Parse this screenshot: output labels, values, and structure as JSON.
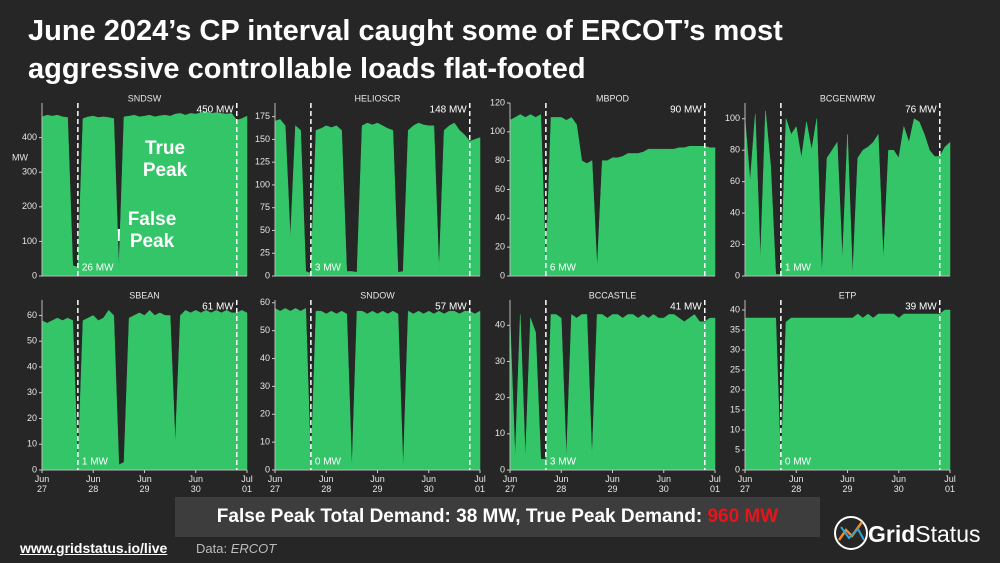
{
  "title": "June 2024’s CP interval caught some of ERCOT’s most aggressive controllable loads flat-footed",
  "annotations": {
    "true_peak": "True Peak",
    "false_peak": "False Peak"
  },
  "banner": {
    "text": "False Peak Total Demand: 38 MW, True Peak Demand:",
    "highlight": "960 MW"
  },
  "footer": {
    "url": "www.gridstatus.io/live",
    "source_label": "Data:",
    "source": "ERCOT"
  },
  "logo": {
    "name_1": "Grid",
    "name_2": "Status"
  },
  "chart_data": [
    {
      "type": "area",
      "title": "SNDSW",
      "ylabel": "MW",
      "color": "#34c569",
      "x": [
        0,
        0.1,
        0.2,
        0.3,
        0.4,
        0.5,
        0.6,
        0.7,
        0.8,
        0.9,
        1,
        1.1,
        1.2,
        1.3,
        1.4,
        1.5,
        1.6,
        1.7,
        1.8,
        1.9,
        2,
        2.1,
        2.2,
        2.3,
        2.4,
        2.5,
        2.6,
        2.7,
        2.8,
        2.9,
        3,
        3.1,
        3.2,
        3.3,
        3.4,
        3.5,
        3.6,
        3.7,
        3.8,
        3.9,
        4
      ],
      "values": [
        460,
        465,
        462,
        465,
        460,
        458,
        30,
        26,
        455,
        460,
        462,
        458,
        460,
        458,
        455,
        20,
        460,
        462,
        465,
        460,
        462,
        465,
        460,
        463,
        465,
        462,
        468,
        470,
        465,
        470,
        468,
        472,
        475,
        470,
        472,
        470,
        468,
        470,
        450,
        455,
        462
      ],
      "xlim": [
        0,
        4
      ],
      "ylim": [
        0,
        500
      ],
      "yticks": [
        0,
        100,
        200,
        300,
        400
      ],
      "false_peak": {
        "x": 0.7,
        "value": 26,
        "label": "26 MW"
      },
      "true_peak": {
        "x": 3.8,
        "value": 450,
        "label": "450 MW"
      }
    },
    {
      "type": "area",
      "title": "HELIOSCR",
      "color": "#34c569",
      "x": [
        0,
        0.1,
        0.2,
        0.3,
        0.4,
        0.5,
        0.6,
        0.7,
        0.8,
        0.9,
        1,
        1.1,
        1.2,
        1.3,
        1.4,
        1.5,
        1.6,
        1.7,
        1.8,
        1.9,
        2,
        2.1,
        2.2,
        2.3,
        2.4,
        2.5,
        2.6,
        2.7,
        2.8,
        2.9,
        3,
        3.1,
        3.2,
        3.3,
        3.4,
        3.5,
        3.6,
        3.7,
        3.8,
        3.9,
        4
      ],
      "values": [
        170,
        172,
        165,
        40,
        165,
        160,
        5,
        3,
        160,
        162,
        165,
        163,
        165,
        160,
        5,
        5,
        4,
        165,
        168,
        166,
        168,
        165,
        162,
        160,
        4,
        5,
        160,
        165,
        168,
        166,
        165,
        165,
        5,
        160,
        165,
        168,
        160,
        155,
        148,
        150,
        152
      ],
      "xlim": [
        0,
        4
      ],
      "ylim": [
        0,
        190
      ],
      "yticks": [
        0,
        25,
        50,
        75,
        100,
        125,
        150,
        175
      ],
      "false_peak": {
        "x": 0.7,
        "value": 3,
        "label": "3 MW"
      },
      "true_peak": {
        "x": 3.8,
        "value": 148,
        "label": "148 MW"
      }
    },
    {
      "type": "area",
      "title": "MBPOD",
      "color": "#34c569",
      "x": [
        0,
        0.1,
        0.2,
        0.3,
        0.4,
        0.5,
        0.6,
        0.7,
        0.8,
        0.9,
        1,
        1.1,
        1.2,
        1.3,
        1.4,
        1.5,
        1.6,
        1.7,
        1.8,
        1.9,
        2,
        2.1,
        2.2,
        2.3,
        2.4,
        2.5,
        2.6,
        2.7,
        2.8,
        2.9,
        3,
        3.1,
        3.2,
        3.3,
        3.4,
        3.5,
        3.6,
        3.7,
        3.8,
        3.9,
        4
      ],
      "values": [
        108,
        110,
        112,
        110,
        112,
        110,
        112,
        6,
        110,
        110,
        110,
        108,
        110,
        105,
        80,
        78,
        80,
        5,
        80,
        80,
        82,
        82,
        83,
        85,
        85,
        85,
        86,
        88,
        88,
        88,
        88,
        88,
        88,
        89,
        89,
        90,
        90,
        90,
        90,
        89,
        89
      ],
      "xlim": [
        0,
        4
      ],
      "ylim": [
        0,
        120
      ],
      "yticks": [
        0,
        20,
        40,
        60,
        80,
        100,
        120
      ],
      "false_peak": {
        "x": 0.7,
        "value": 6,
        "label": "6 MW"
      },
      "true_peak": {
        "x": 3.8,
        "value": 90,
        "label": "90 MW"
      }
    },
    {
      "type": "area",
      "title": "BCGENWRW",
      "color": "#34c569",
      "x": [
        0,
        0.1,
        0.2,
        0.3,
        0.4,
        0.5,
        0.6,
        0.7,
        0.8,
        0.9,
        1,
        1.1,
        1.2,
        1.3,
        1.4,
        1.5,
        1.6,
        1.7,
        1.8,
        1.9,
        2,
        2.1,
        2.2,
        2.3,
        2.4,
        2.5,
        2.6,
        2.7,
        2.8,
        2.9,
        3,
        3.1,
        3.2,
        3.3,
        3.4,
        3.5,
        3.6,
        3.7,
        3.8,
        3.9,
        4
      ],
      "values": [
        100,
        60,
        103,
        10,
        105,
        70,
        1,
        1,
        100,
        90,
        95,
        75,
        98,
        80,
        100,
        0,
        75,
        80,
        85,
        10,
        90,
        0,
        75,
        80,
        82,
        85,
        90,
        10,
        80,
        80,
        75,
        95,
        85,
        100,
        98,
        90,
        80,
        76,
        76,
        82,
        85
      ],
      "xlim": [
        0,
        4
      ],
      "ylim": [
        0,
        110
      ],
      "yticks": [
        0,
        20,
        40,
        60,
        80,
        100
      ],
      "false_peak": {
        "x": 0.7,
        "value": 1,
        "label": "1 MW"
      },
      "true_peak": {
        "x": 3.8,
        "value": 76,
        "label": "76 MW"
      }
    },
    {
      "type": "area",
      "title": "SBEAN",
      "color": "#34c569",
      "x": [
        0,
        0.1,
        0.2,
        0.3,
        0.4,
        0.5,
        0.6,
        0.7,
        0.8,
        0.9,
        1,
        1.1,
        1.2,
        1.3,
        1.4,
        1.5,
        1.6,
        1.7,
        1.8,
        1.9,
        2,
        2.1,
        2.2,
        2.3,
        2.4,
        2.5,
        2.6,
        2.7,
        2.8,
        2.9,
        3,
        3.1,
        3.2,
        3.3,
        3.4,
        3.5,
        3.6,
        3.7,
        3.8,
        3.9,
        4
      ],
      "values": [
        58,
        57,
        58,
        59,
        58,
        59,
        58,
        1,
        58,
        59,
        60,
        58,
        59,
        62,
        60,
        2,
        3,
        59,
        60,
        61,
        60,
        62,
        60,
        61,
        60,
        60,
        10,
        60,
        62,
        61,
        62,
        61,
        62,
        61,
        62,
        61,
        62,
        61,
        61,
        62,
        61
      ],
      "xlim": [
        0,
        4
      ],
      "ylim": [
        0,
        66
      ],
      "yticks": [
        0,
        10,
        20,
        30,
        40,
        50,
        60
      ],
      "xticks": [
        {
          "value": 0,
          "label": "Jun\n27"
        },
        {
          "value": 1,
          "label": "Jun\n28"
        },
        {
          "value": 2,
          "label": "Jun\n29"
        },
        {
          "value": 3,
          "label": "Jun\n30"
        },
        {
          "value": 4,
          "label": "Jul\n01"
        }
      ],
      "false_peak": {
        "x": 0.7,
        "value": 1,
        "label": "1 MW"
      },
      "true_peak": {
        "x": 3.8,
        "value": 61,
        "label": "61 MW"
      }
    },
    {
      "type": "area",
      "title": "SNDOW",
      "color": "#34c569",
      "x": [
        0,
        0.1,
        0.2,
        0.3,
        0.4,
        0.5,
        0.6,
        0.7,
        0.8,
        0.9,
        1,
        1.1,
        1.2,
        1.3,
        1.4,
        1.5,
        1.6,
        1.7,
        1.8,
        1.9,
        2,
        2.1,
        2.2,
        2.3,
        2.4,
        2.5,
        2.6,
        2.7,
        2.8,
        2.9,
        3,
        3.1,
        3.2,
        3.3,
        3.4,
        3.5,
        3.6,
        3.7,
        3.8,
        3.9,
        4
      ],
      "values": [
        58,
        57,
        58,
        57,
        58,
        57,
        58,
        0,
        57,
        57,
        56,
        57,
        56,
        57,
        56,
        0,
        57,
        57,
        56,
        57,
        56,
        57,
        56,
        57,
        56,
        0,
        57,
        56,
        57,
        56,
        57,
        56,
        57,
        56,
        57,
        57,
        56,
        57,
        57,
        56,
        57
      ],
      "xlim": [
        0,
        4
      ],
      "ylim": [
        0,
        61
      ],
      "yticks": [
        0,
        10,
        20,
        30,
        40,
        50,
        60
      ],
      "xticks": [
        {
          "value": 0,
          "label": "Jun\n27"
        },
        {
          "value": 1,
          "label": "Jun\n28"
        },
        {
          "value": 2,
          "label": "Jun\n29"
        },
        {
          "value": 3,
          "label": "Jun\n30"
        },
        {
          "value": 4,
          "label": "Jul\n01"
        }
      ],
      "false_peak": {
        "x": 0.7,
        "value": 0,
        "label": "0 MW"
      },
      "true_peak": {
        "x": 3.8,
        "value": 57,
        "label": "57 MW"
      }
    },
    {
      "type": "area",
      "title": "BCCASTLE",
      "color": "#34c569",
      "x": [
        0,
        0.1,
        0.2,
        0.3,
        0.4,
        0.5,
        0.6,
        0.7,
        0.8,
        0.9,
        1,
        1.1,
        1.2,
        1.3,
        1.4,
        1.5,
        1.6,
        1.7,
        1.8,
        1.9,
        2,
        2.1,
        2.2,
        2.3,
        2.4,
        2.5,
        2.6,
        2.7,
        2.8,
        2.9,
        3,
        3.1,
        3.2,
        3.3,
        3.4,
        3.5,
        3.6,
        3.7,
        3.8,
        3.9,
        4
      ],
      "values": [
        42,
        3,
        43,
        3,
        42,
        38,
        3,
        3,
        43,
        43,
        42,
        3,
        43,
        42,
        43,
        43,
        3,
        43,
        43,
        42,
        43,
        43,
        42,
        43,
        43,
        42,
        43,
        42,
        43,
        42,
        42,
        43,
        43,
        42,
        41,
        42,
        43,
        41,
        41,
        42,
        42
      ],
      "xlim": [
        0,
        4
      ],
      "ylim": [
        0,
        47
      ],
      "yticks": [
        0,
        10,
        20,
        30,
        40
      ],
      "xticks": [
        {
          "value": 0,
          "label": "Jun\n27"
        },
        {
          "value": 1,
          "label": "Jun\n28"
        },
        {
          "value": 2,
          "label": "Jun\n29"
        },
        {
          "value": 3,
          "label": "Jun\n30"
        },
        {
          "value": 4,
          "label": "Jul\n01"
        }
      ],
      "false_peak": {
        "x": 0.7,
        "value": 3,
        "label": "3 MW"
      },
      "true_peak": {
        "x": 3.8,
        "value": 41,
        "label": "41 MW"
      }
    },
    {
      "type": "area",
      "title": "ETP",
      "color": "#34c569",
      "x": [
        0,
        0.1,
        0.2,
        0.3,
        0.4,
        0.5,
        0.6,
        0.7,
        0.8,
        0.9,
        1,
        1.1,
        1.2,
        1.3,
        1.4,
        1.5,
        1.6,
        1.7,
        1.8,
        1.9,
        2,
        2.1,
        2.2,
        2.3,
        2.4,
        2.5,
        2.6,
        2.7,
        2.8,
        2.9,
        3,
        3.1,
        3.2,
        3.3,
        3.4,
        3.5,
        3.6,
        3.7,
        3.8,
        3.9,
        4
      ],
      "values": [
        38,
        38,
        38,
        38,
        38,
        38,
        38,
        0,
        37,
        38,
        38,
        38,
        38,
        38,
        38,
        38,
        38,
        38,
        38,
        38,
        38,
        38,
        39,
        38,
        39,
        38,
        39,
        39,
        39,
        39,
        38,
        39,
        39,
        39,
        39,
        39,
        39,
        39,
        39,
        40,
        40
      ],
      "xlim": [
        0,
        4
      ],
      "ylim": [
        0,
        42.5
      ],
      "yticks": [
        0,
        5,
        10,
        15,
        20,
        25,
        30,
        35,
        40
      ],
      "xticks": [
        {
          "value": 0,
          "label": "Jun\n27"
        },
        {
          "value": 1,
          "label": "Jun\n28"
        },
        {
          "value": 2,
          "label": "Jun\n29"
        },
        {
          "value": 3,
          "label": "Jun\n30"
        },
        {
          "value": 4,
          "label": "Jul\n01"
        }
      ],
      "false_peak": {
        "x": 0.7,
        "value": 0,
        "label": "0 MW"
      },
      "true_peak": {
        "x": 3.8,
        "value": 39,
        "label": "39 MW"
      }
    }
  ]
}
